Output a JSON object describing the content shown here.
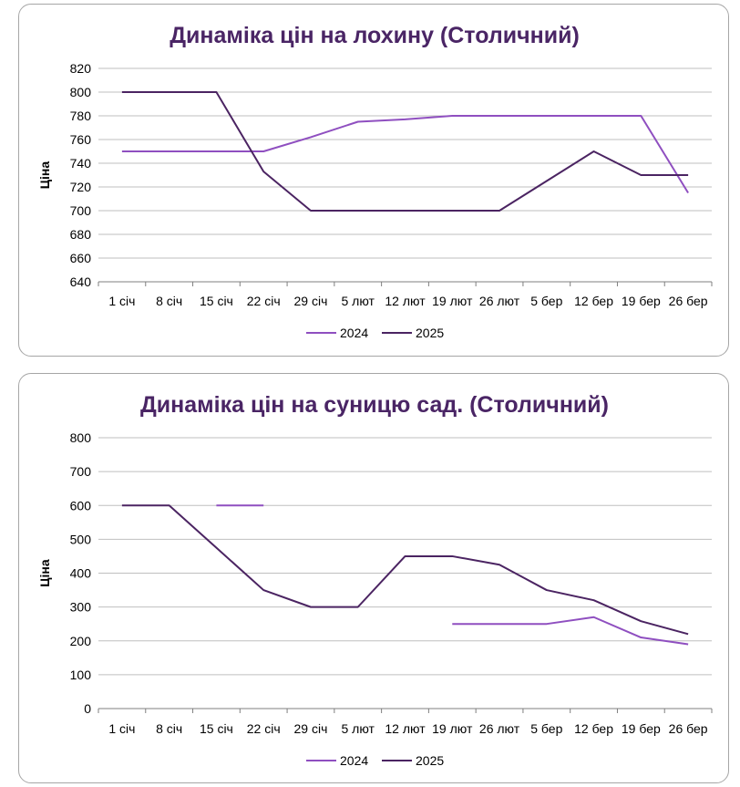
{
  "chart_data": [
    {
      "type": "line",
      "title": "Динаміка цін на лохину (Столичний)",
      "ylabel": "Ціна",
      "xlabel": "",
      "categories": [
        "1 січ",
        "8 січ",
        "15 січ",
        "22 січ",
        "29 січ",
        "5 лют",
        "12 лют",
        "19 лют",
        "26 лют",
        "5 бер",
        "12 бер",
        "19 бер",
        "26 бер"
      ],
      "ylim": [
        640,
        820
      ],
      "yticks": [
        640,
        660,
        680,
        700,
        720,
        740,
        760,
        780,
        800,
        820
      ],
      "grid": true,
      "legend_position": "bottom",
      "series": [
        {
          "name": "2024",
          "color": "#8f4fc0",
          "values": [
            750,
            750,
            750,
            750,
            762,
            775,
            777,
            780,
            780,
            780,
            780,
            780,
            715
          ]
        },
        {
          "name": "2025",
          "color": "#4b2462",
          "values": [
            800,
            800,
            800,
            733,
            700,
            700,
            700,
            700,
            700,
            725,
            750,
            730,
            730
          ]
        }
      ]
    },
    {
      "type": "line",
      "title": "Динаміка цін на суницю сад. (Столичний)",
      "ylabel": "Ціна",
      "xlabel": "",
      "categories": [
        "1 січ",
        "8 січ",
        "15 січ",
        "22 січ",
        "29 січ",
        "5 лют",
        "12 лют",
        "19 лют",
        "26 лют",
        "5 бер",
        "12 бер",
        "19 бер",
        "26 бер"
      ],
      "ylim": [
        0,
        800
      ],
      "yticks": [
        0,
        100,
        200,
        300,
        400,
        500,
        600,
        700,
        800
      ],
      "grid": true,
      "legend_position": "bottom",
      "series": [
        {
          "name": "2024",
          "color": "#8f4fc0",
          "values": [
            null,
            null,
            600,
            600,
            null,
            null,
            null,
            250,
            250,
            250,
            270,
            210,
            190
          ]
        },
        {
          "name": "2025",
          "color": "#4b2462",
          "values": [
            600,
            600,
            475,
            350,
            300,
            300,
            450,
            450,
            425,
            350,
            320,
            258,
            220
          ]
        }
      ]
    }
  ]
}
